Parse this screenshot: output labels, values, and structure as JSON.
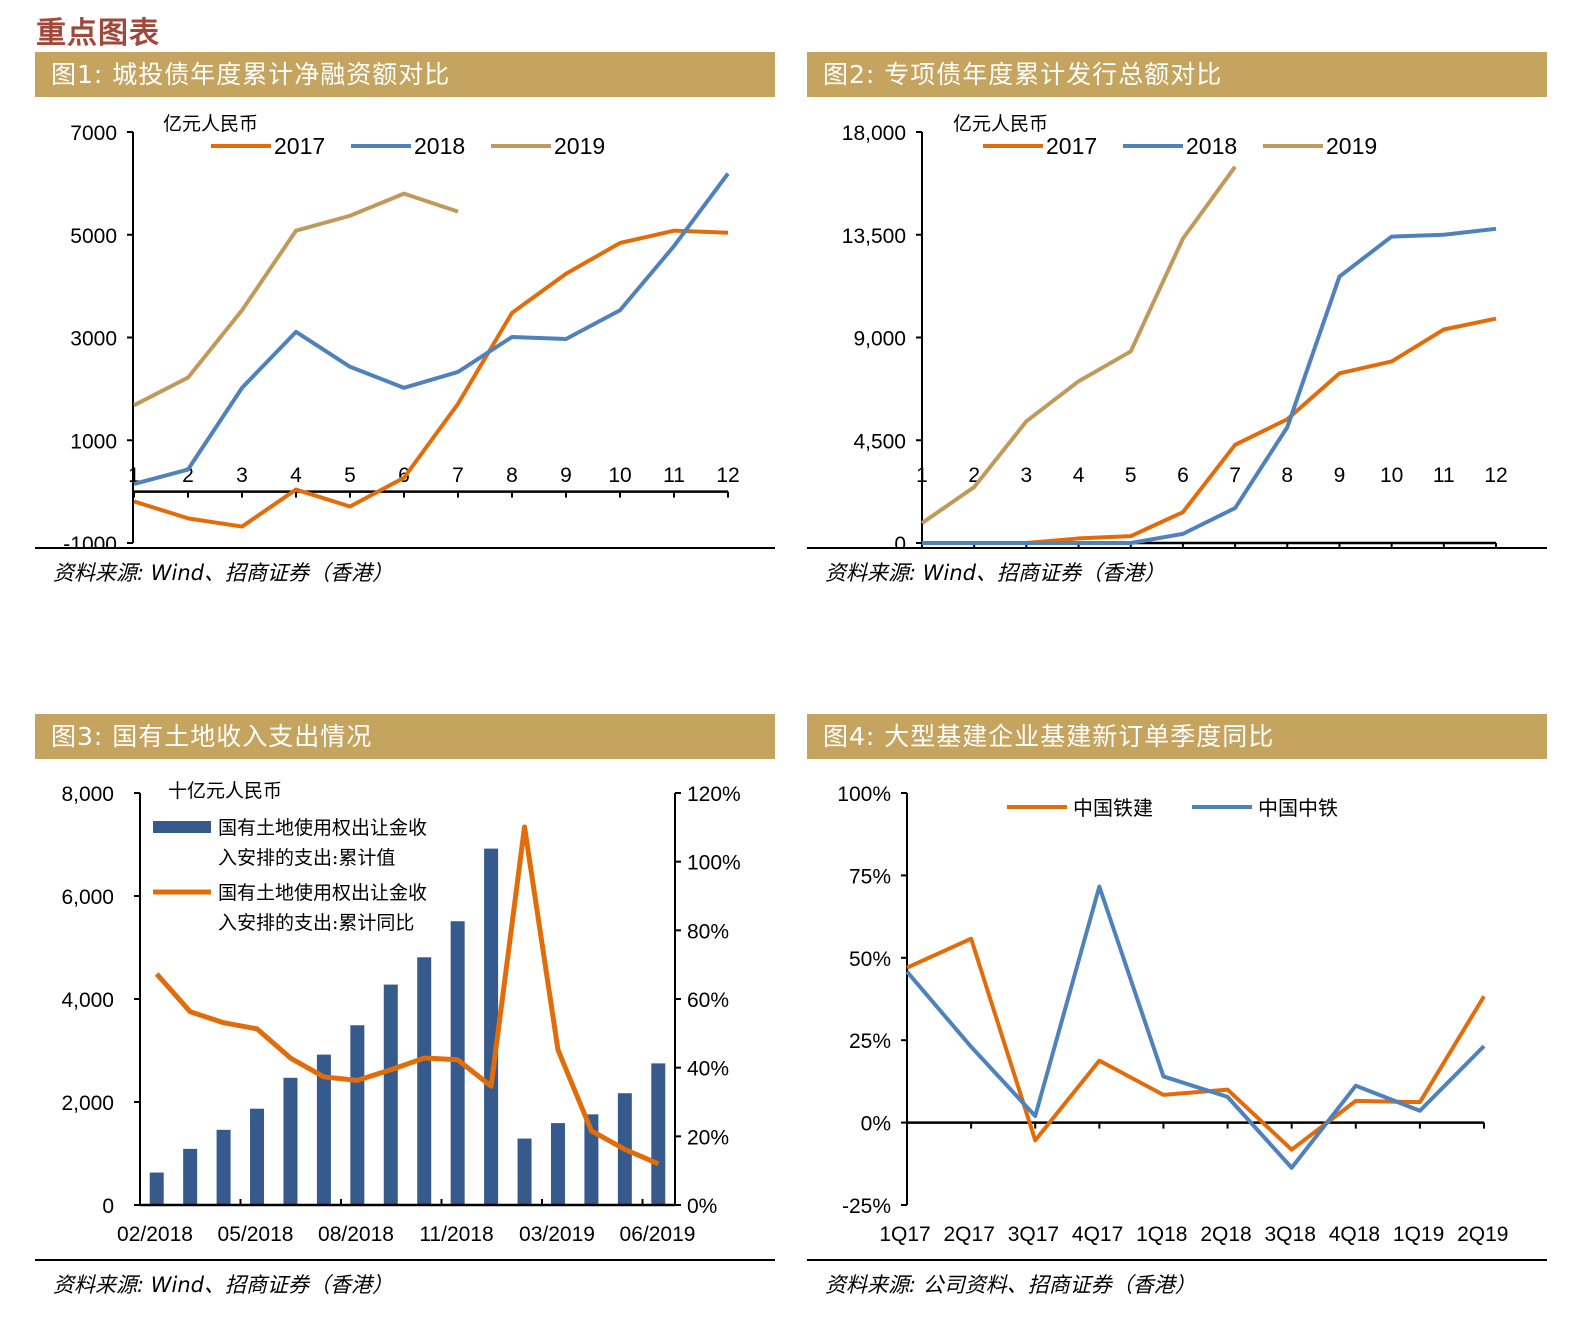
{
  "page": {
    "section_title": "重点图表",
    "colors": {
      "header_bg": "#C4A45E",
      "section_title": "#A0483A",
      "orange": "#E36C0A",
      "blue": "#4F81BD",
      "gold": "#C19A5B",
      "navy": "#375A8C"
    }
  },
  "chart_data": [
    {
      "id": "fig1",
      "type": "line",
      "title": "图1: 城投债年度累计净融资额对比",
      "unit_label": "亿元人民币",
      "xlabel": "",
      "ylabel": "",
      "x": [
        1,
        2,
        3,
        4,
        5,
        6,
        7,
        8,
        9,
        10,
        11,
        12
      ],
      "x_tick_labels": [
        "1",
        "2",
        "3",
        "4",
        "5",
        "6",
        "7",
        "8",
        "9",
        "10",
        "11",
        "12"
      ],
      "ylim": [
        -1000,
        7000
      ],
      "y_ticks": [
        -1000,
        1000,
        3000,
        5000,
        7000
      ],
      "y_tick_labels": [
        "-1000",
        "1000",
        "3000",
        "5000",
        "7000"
      ],
      "legend_position": "top",
      "grid": false,
      "series": [
        {
          "name": "2017",
          "color": "#E36C0A",
          "values": [
            -190,
            -520,
            -680,
            40,
            -290,
            270,
            1710,
            3480,
            4240,
            4840,
            5080,
            5040
          ]
        },
        {
          "name": "2018",
          "color": "#4F81BD",
          "values": [
            150,
            430,
            2020,
            3110,
            2430,
            2020,
            2330,
            3010,
            2970,
            3530,
            4780,
            6190
          ]
        },
        {
          "name": "2019",
          "color": "#C19A5B",
          "values": [
            1680,
            2220,
            3530,
            5080,
            5370,
            5800,
            5450
          ]
        }
      ],
      "source": "资料来源: Wind、招商证券（香港）"
    },
    {
      "id": "fig2",
      "type": "line",
      "title": "图2: 专项债年度累计发行总额对比",
      "unit_label": "亿元人民币",
      "xlabel": "",
      "ylabel": "",
      "x": [
        1,
        2,
        3,
        4,
        5,
        6,
        7,
        8,
        9,
        10,
        11,
        12
      ],
      "x_tick_labels": [
        "1",
        "2",
        "3",
        "4",
        "5",
        "6",
        "7",
        "8",
        "9",
        "10",
        "11",
        "12"
      ],
      "ylim": [
        0,
        18000
      ],
      "y_ticks": [
        0,
        4500,
        9000,
        13500,
        18000
      ],
      "y_tick_labels": [
        "0",
        "4,500",
        "9,000",
        "13,500",
        "18,000"
      ],
      "legend_position": "top",
      "grid": false,
      "series": [
        {
          "name": "2017",
          "color": "#E36C0A",
          "values": [
            0,
            0,
            0,
            200,
            300,
            1350,
            4300,
            5420,
            7430,
            7950,
            9350,
            9830
          ]
        },
        {
          "name": "2018",
          "color": "#4F81BD",
          "values": [
            0,
            0,
            0,
            0,
            0,
            400,
            1530,
            5070,
            11670,
            13420,
            13500,
            13760
          ]
        },
        {
          "name": "2019",
          "color": "#C19A5B",
          "values": [
            870,
            2450,
            5330,
            7080,
            8390,
            13330,
            16480
          ]
        }
      ],
      "source": "资料来源: Wind、招商证券（香港）"
    },
    {
      "id": "fig3",
      "type": "bar",
      "title": "图3: 国有土地收入支出情况",
      "unit_label": "十亿元人民币",
      "xlabel": "",
      "ylabel": "",
      "categories": [
        "02/2018",
        "03/2018",
        "04/2018",
        "05/2018",
        "06/2018",
        "07/2018",
        "08/2018",
        "09/2018",
        "10/2018",
        "11/2018",
        "12/2018",
        "02/2019",
        "03/2019",
        "04/2019",
        "05/2019",
        "06/2019"
      ],
      "x_tick_labels": [
        "02/2018",
        "05/2018",
        "08/2018",
        "11/2018",
        "03/2019",
        "06/2019"
      ],
      "ylim": [
        0,
        8000
      ],
      "y_ticks": [
        0,
        2000,
        4000,
        6000,
        8000
      ],
      "y_tick_labels": [
        "0",
        "2,000",
        "4,000",
        "6,000",
        "8,000"
      ],
      "y2lim": [
        0,
        120
      ],
      "y2_ticks": [
        0,
        20,
        40,
        60,
        80,
        100,
        120
      ],
      "y2_tick_labels": [
        "0%",
        "20%",
        "40%",
        "60%",
        "80%",
        "100%",
        "120%"
      ],
      "legend_position": "top-left",
      "grid": false,
      "series": [
        {
          "name": "国有土地使用权出让金收入安排的支出:累计值",
          "legend_lines": [
            "国有土地使用权出让金收",
            "入安排的支出:累计值"
          ],
          "type": "bar",
          "axis": "left",
          "color": "#375A8C",
          "values": [
            630,
            1090,
            1460,
            1870,
            2470,
            2920,
            3490,
            4280,
            4810,
            5510,
            6920,
            1290,
            1590,
            1760,
            2170,
            2750
          ]
        },
        {
          "name": "国有土地使用权出让金收入安排的支出:累计同比",
          "legend_lines": [
            "国有土地使用权出让金收",
            "入安排的支出:累计同比"
          ],
          "type": "line",
          "axis": "right",
          "color": "#E36C0A",
          "values": [
            67.3,
            56.3,
            53.1,
            51.3,
            42.8,
            37.3,
            36.3,
            39.4,
            42.8,
            42.3,
            34.6,
            110.1,
            45.2,
            21.6,
            16.2,
            12.0
          ]
        }
      ],
      "source": "资料来源: Wind、招商证券（香港）"
    },
    {
      "id": "fig4",
      "type": "line",
      "title": "图4: 大型基建企业基建新订单季度同比",
      "xlabel": "",
      "ylabel": "",
      "categories": [
        "1Q17",
        "2Q17",
        "3Q17",
        "4Q17",
        "1Q18",
        "2Q18",
        "3Q18",
        "4Q18",
        "1Q19",
        "2Q19"
      ],
      "ylim": [
        -25,
        100
      ],
      "y_ticks": [
        -25,
        0,
        25,
        50,
        75,
        100
      ],
      "y_tick_labels": [
        "-25%",
        "0%",
        "25%",
        "50%",
        "75%",
        "100%"
      ],
      "legend_position": "top",
      "grid": false,
      "series": [
        {
          "name": "中国铁建",
          "color": "#E36C0A",
          "values": [
            47.0,
            55.8,
            -5.4,
            18.8,
            8.4,
            10.0,
            -8.2,
            6.6,
            6.2,
            38.3
          ]
        },
        {
          "name": "中国中铁",
          "color": "#4F81BD",
          "values": [
            45.8,
            23.0,
            2.0,
            71.6,
            14.0,
            7.8,
            -13.7,
            11.2,
            3.6,
            23.2
          ]
        }
      ],
      "source": "资料来源: 公司资料、招商证券（香港）"
    }
  ]
}
